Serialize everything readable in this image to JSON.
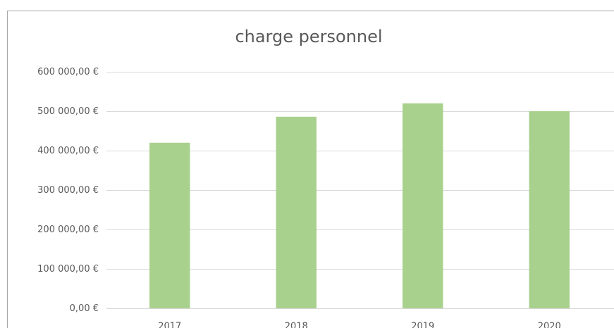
{
  "chart_data": {
    "type": "bar",
    "title": "charge personnel",
    "categories": [
      "2017",
      "2018",
      "2019",
      "2020"
    ],
    "values": [
      420000,
      486000,
      520000,
      500000
    ],
    "color": "#a9d18e",
    "ylim": [
      0,
      600000
    ],
    "yticks": [
      {
        "value": 0,
        "label": "0,00 €"
      },
      {
        "value": 100000,
        "label": "100 000,00 €"
      },
      {
        "value": 200000,
        "label": "200 000,00 €"
      },
      {
        "value": 300000,
        "label": "300 000,00 €"
      },
      {
        "value": 400000,
        "label": "400 000,00 €"
      },
      {
        "value": 500000,
        "label": "500 000,00 €"
      },
      {
        "value": 600000,
        "label": "600 000,00 €"
      }
    ],
    "grid": true
  }
}
